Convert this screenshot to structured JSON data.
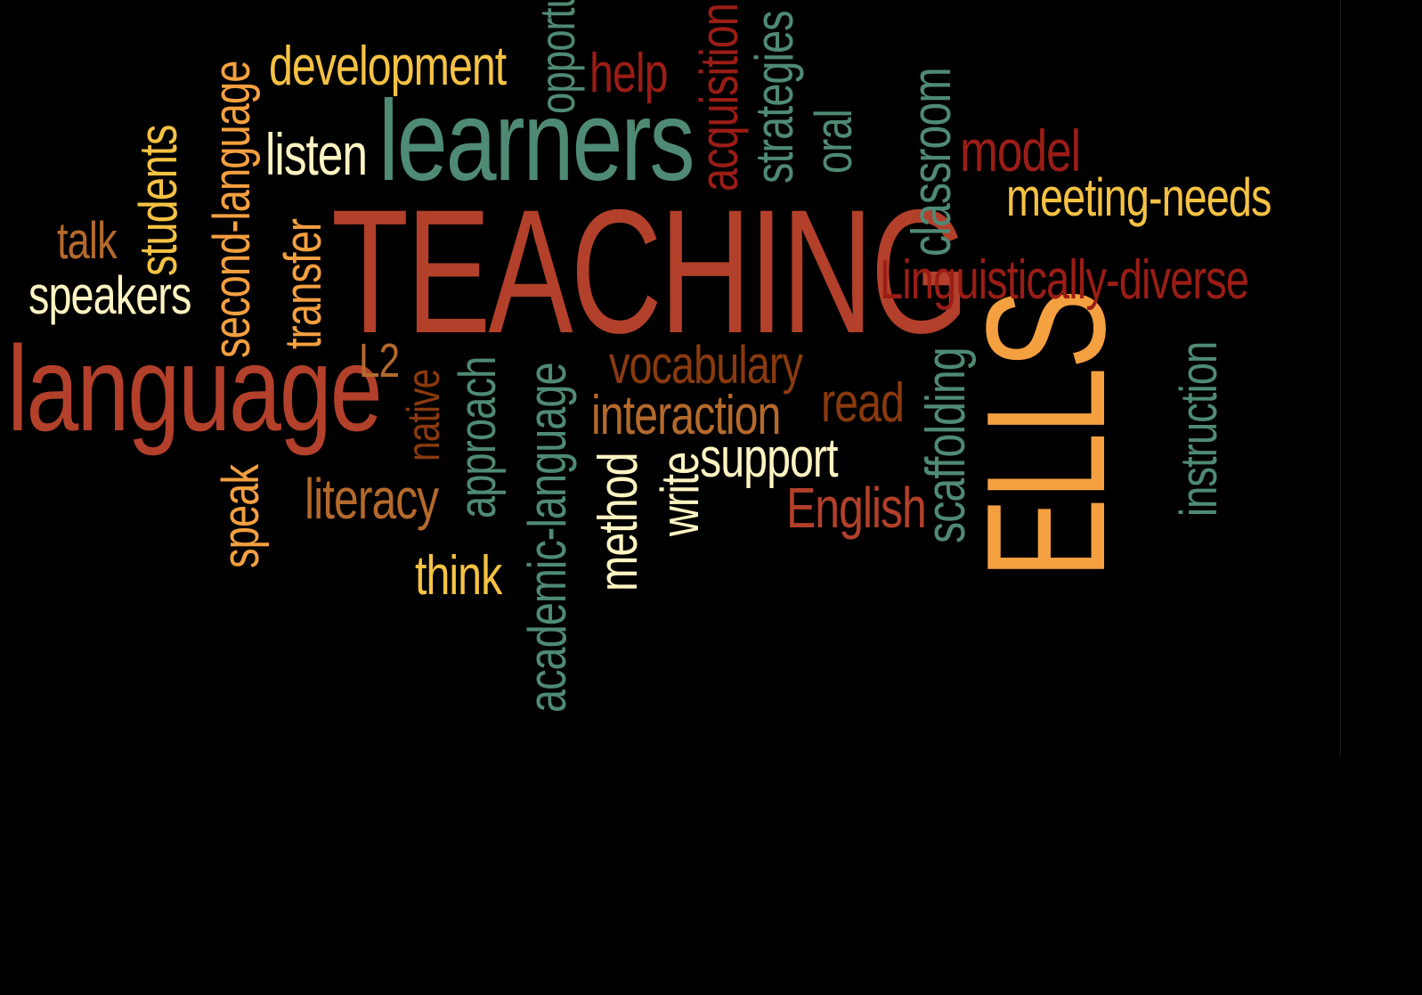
{
  "palette": {
    "background": "#000000",
    "dark_red": "#9b1d16",
    "rust": "#b3402a",
    "burnt_orange": "#8a3a0e",
    "brown_orange": "#b46a2c",
    "orange": "#f5a040",
    "yellow": "#f5c243",
    "cream": "#fff4c2",
    "teal": "#4f8a74"
  },
  "words": [
    {
      "id": "teaching",
      "text": "TEACHING",
      "color": "#b3402a",
      "rotated": false
    },
    {
      "id": "learners",
      "text": "learners",
      "color": "#4f8a74",
      "rotated": false
    },
    {
      "id": "language",
      "text": "language",
      "color": "#b3402a",
      "rotated": false
    },
    {
      "id": "ells",
      "text": "ELLS",
      "color": "#f5a040",
      "rotated": true
    },
    {
      "id": "development",
      "text": "development",
      "color": "#f5c243",
      "rotated": false
    },
    {
      "id": "opportunities",
      "text": "opportunities",
      "color": "#4f8a74",
      "rotated": true
    },
    {
      "id": "help",
      "text": "help",
      "color": "#9b1d16",
      "rotated": false
    },
    {
      "id": "acquisition",
      "text": "acquisition",
      "color": "#9b1d16",
      "rotated": true
    },
    {
      "id": "strategies",
      "text": "strategies",
      "color": "#4f8a74",
      "rotated": true
    },
    {
      "id": "oral",
      "text": "oral",
      "color": "#4f8a74",
      "rotated": true
    },
    {
      "id": "classroom",
      "text": "classroom",
      "color": "#4f8a74",
      "rotated": true
    },
    {
      "id": "model",
      "text": "model",
      "color": "#9b1d16",
      "rotated": false
    },
    {
      "id": "meeting-needs",
      "text": "meeting-needs",
      "color": "#f5c243",
      "rotated": false
    },
    {
      "id": "linguistically-diverse",
      "text": "Linguistically-diverse",
      "color": "#9b1d16",
      "rotated": false
    },
    {
      "id": "listen",
      "text": "listen",
      "color": "#fff4c2",
      "rotated": false
    },
    {
      "id": "second-language",
      "text": "second-language",
      "color": "#f5a040",
      "rotated": true
    },
    {
      "id": "students",
      "text": "students",
      "color": "#f5c243",
      "rotated": true
    },
    {
      "id": "talk",
      "text": "talk",
      "color": "#b46a2c",
      "rotated": false
    },
    {
      "id": "speakers",
      "text": "speakers",
      "color": "#fff4c2",
      "rotated": false
    },
    {
      "id": "transfer",
      "text": "transfer",
      "color": "#f5a040",
      "rotated": true
    },
    {
      "id": "l2",
      "text": "L2",
      "color": "#b46a2c",
      "rotated": false
    },
    {
      "id": "native",
      "text": "native",
      "color": "#8a3a0e",
      "rotated": true
    },
    {
      "id": "approach",
      "text": "approach",
      "color": "#4f8a74",
      "rotated": true
    },
    {
      "id": "academic-language",
      "text": "academic-language",
      "color": "#4f8a74",
      "rotated": true
    },
    {
      "id": "vocabulary",
      "text": "vocabulary",
      "color": "#8a3a0e",
      "rotated": false
    },
    {
      "id": "interaction",
      "text": "interaction",
      "color": "#b46a2c",
      "rotated": false
    },
    {
      "id": "read",
      "text": "read",
      "color": "#8a3a0e",
      "rotated": false
    },
    {
      "id": "scaffolding",
      "text": "scaffolding",
      "color": "#4f8a74",
      "rotated": true
    },
    {
      "id": "support",
      "text": "support",
      "color": "#fff4c2",
      "rotated": false
    },
    {
      "id": "write",
      "text": "write",
      "color": "#fff4c2",
      "rotated": true
    },
    {
      "id": "method",
      "text": "method",
      "color": "#fff4c2",
      "rotated": true
    },
    {
      "id": "english",
      "text": "English",
      "color": "#b3402a",
      "rotated": false
    },
    {
      "id": "instruction",
      "text": "instruction",
      "color": "#4f8a74",
      "rotated": true
    },
    {
      "id": "literacy",
      "text": "literacy",
      "color": "#b46a2c",
      "rotated": false
    },
    {
      "id": "speak",
      "text": "speak",
      "color": "#f5a040",
      "rotated": true
    },
    {
      "id": "think",
      "text": "think",
      "color": "#f5c243",
      "rotated": false
    }
  ]
}
